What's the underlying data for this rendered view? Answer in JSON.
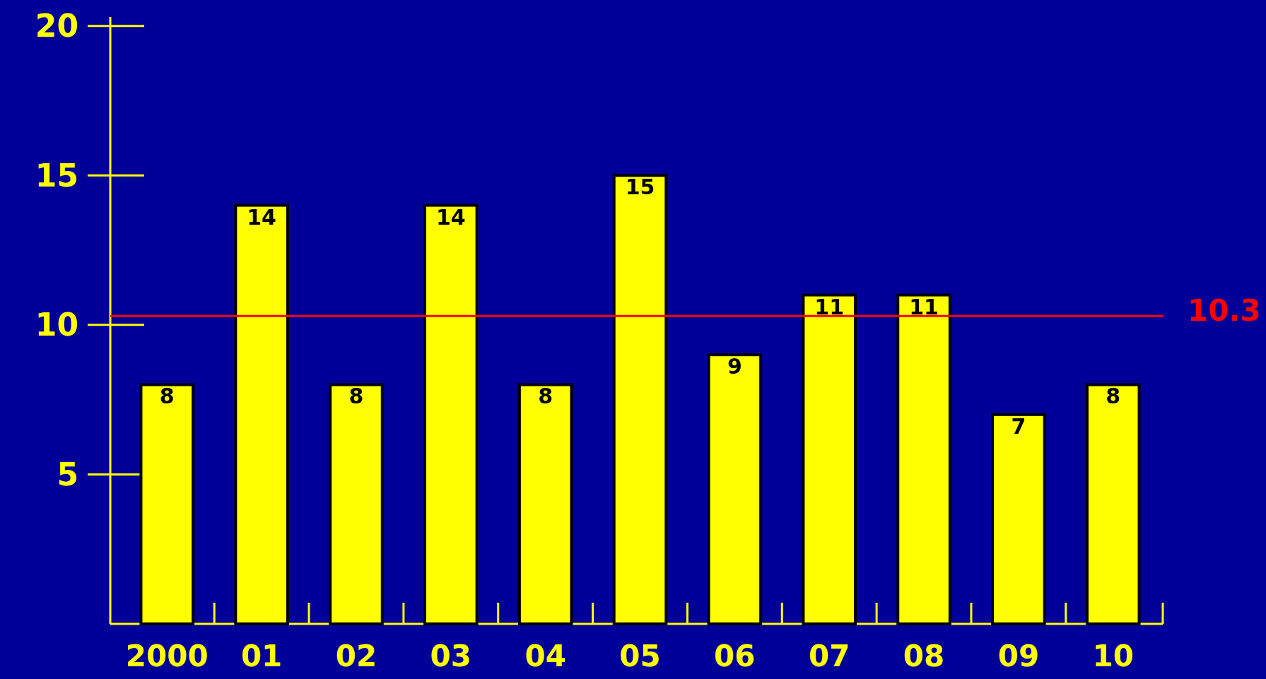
{
  "chart_data": {
    "type": "bar",
    "categories": [
      "2000",
      "01",
      "02",
      "03",
      "04",
      "05",
      "06",
      "07",
      "08",
      "09",
      "10"
    ],
    "values": [
      8,
      14,
      8,
      14,
      8,
      15,
      9,
      11,
      11,
      7,
      8
    ],
    "color": "#ffff00",
    "ylim": [
      0,
      20.3
    ],
    "yticks": [
      5,
      10,
      15,
      20
    ],
    "grid": false,
    "data_labels": true,
    "ref_lines": [
      {
        "axis": "y",
        "value": 10.3,
        "label": "10.3",
        "color": "#ff0000"
      }
    ]
  }
}
